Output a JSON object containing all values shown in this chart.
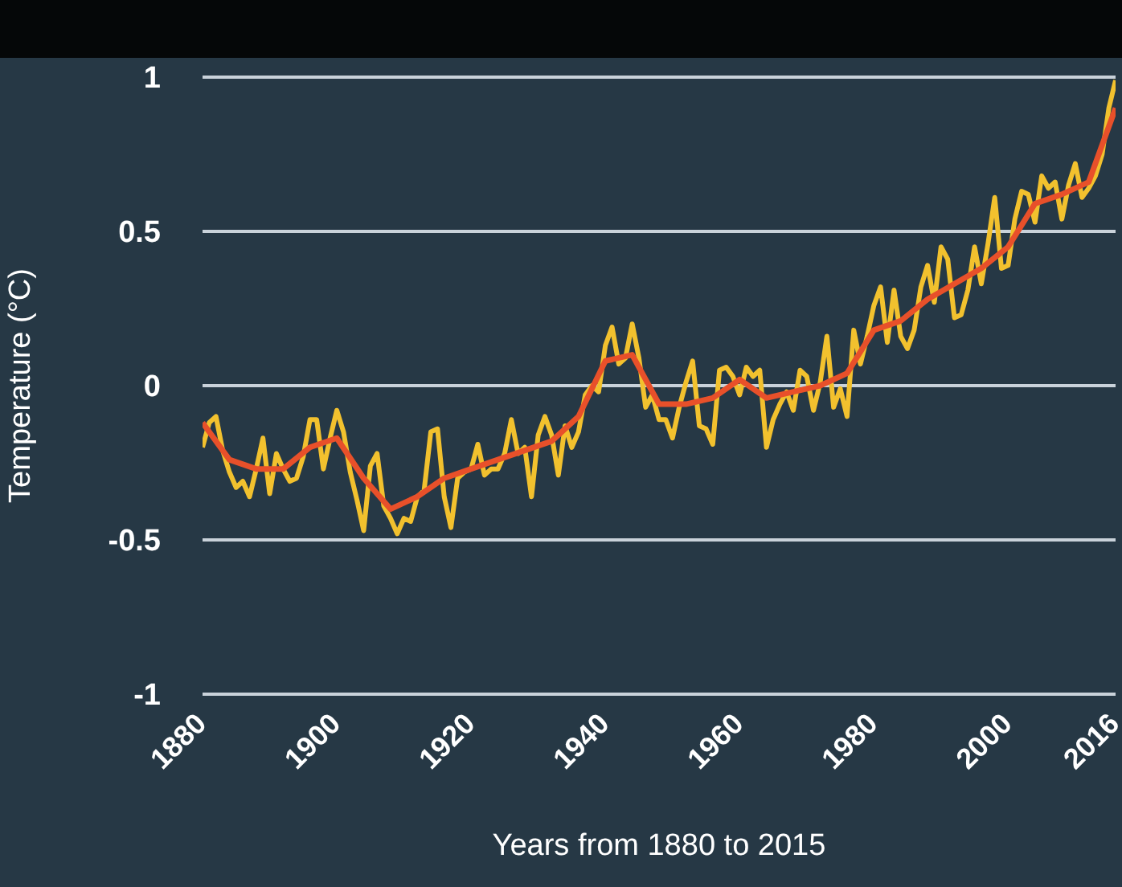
{
  "chart_data": {
    "type": "line",
    "xlabel": "Years from 1880 to 2015",
    "ylabel": "Temperature (°C)",
    "xlim": [
      1880,
      2016
    ],
    "xticks": [
      1880,
      1900,
      1920,
      1940,
      1960,
      1980,
      2000,
      2016
    ],
    "ylim": [
      -1,
      1
    ],
    "yticks": [
      -1,
      -0.5,
      0,
      0.5,
      1
    ],
    "grid": "y",
    "marker": "none",
    "line_style": "solid",
    "series": [
      {
        "color": "#f2c12e",
        "x": [
          1880,
          1881,
          1882,
          1883,
          1884,
          1885,
          1886,
          1887,
          1888,
          1889,
          1890,
          1891,
          1892,
          1893,
          1894,
          1895,
          1896,
          1897,
          1898,
          1899,
          1900,
          1901,
          1902,
          1903,
          1904,
          1905,
          1906,
          1907,
          1908,
          1909,
          1910,
          1911,
          1912,
          1913,
          1914,
          1915,
          1916,
          1917,
          1918,
          1919,
          1920,
          1921,
          1922,
          1923,
          1924,
          1925,
          1926,
          1927,
          1928,
          1929,
          1930,
          1931,
          1932,
          1933,
          1934,
          1935,
          1936,
          1937,
          1938,
          1939,
          1940,
          1941,
          1942,
          1943,
          1944,
          1945,
          1946,
          1947,
          1948,
          1949,
          1950,
          1951,
          1952,
          1953,
          1954,
          1955,
          1956,
          1957,
          1958,
          1959,
          1960,
          1961,
          1962,
          1963,
          1964,
          1965,
          1966,
          1967,
          1968,
          1969,
          1970,
          1971,
          1972,
          1973,
          1974,
          1975,
          1976,
          1977,
          1978,
          1979,
          1980,
          1981,
          1982,
          1983,
          1984,
          1985,
          1986,
          1987,
          1988,
          1989,
          1990,
          1991,
          1992,
          1993,
          1994,
          1995,
          1996,
          1997,
          1998,
          1999,
          2000,
          2001,
          2002,
          2003,
          2004,
          2005,
          2006,
          2007,
          2008,
          2009,
          2010,
          2011,
          2012,
          2013,
          2014,
          2015,
          2016
        ],
        "values": [
          -0.2,
          -0.12,
          -0.1,
          -0.21,
          -0.28,
          -0.33,
          -0.31,
          -0.36,
          -0.27,
          -0.17,
          -0.35,
          -0.22,
          -0.27,
          -0.31,
          -0.3,
          -0.23,
          -0.11,
          -0.11,
          -0.27,
          -0.17,
          -0.08,
          -0.15,
          -0.28,
          -0.37,
          -0.47,
          -0.26,
          -0.22,
          -0.39,
          -0.43,
          -0.48,
          -0.43,
          -0.44,
          -0.36,
          -0.34,
          -0.15,
          -0.14,
          -0.36,
          -0.46,
          -0.3,
          -0.28,
          -0.27,
          -0.19,
          -0.29,
          -0.27,
          -0.27,
          -0.22,
          -0.11,
          -0.22,
          -0.2,
          -0.36,
          -0.16,
          -0.1,
          -0.16,
          -0.29,
          -0.13,
          -0.2,
          -0.15,
          -0.03,
          0,
          -0.02,
          0.13,
          0.19,
          0.07,
          0.09,
          0.2,
          0.09,
          -0.07,
          -0.03,
          -0.11,
          -0.11,
          -0.17,
          -0.07,
          0.01,
          0.08,
          -0.13,
          -0.14,
          -0.19,
          0.05,
          0.06,
          0.03,
          -0.03,
          0.06,
          0.03,
          0.05,
          -0.2,
          -0.11,
          -0.06,
          -0.02,
          -0.08,
          0.05,
          0.03,
          -0.08,
          0.01,
          0.16,
          -0.07,
          -0.01,
          -0.1,
          0.18,
          0.07,
          0.16,
          0.26,
          0.32,
          0.14,
          0.31,
          0.16,
          0.12,
          0.18,
          0.32,
          0.39,
          0.27,
          0.45,
          0.41,
          0.22,
          0.23,
          0.31,
          0.45,
          0.33,
          0.46,
          0.61,
          0.38,
          0.39,
          0.54,
          0.63,
          0.62,
          0.53,
          0.68,
          0.64,
          0.66,
          0.54,
          0.65,
          0.72,
          0.61,
          0.64,
          0.68,
          0.75,
          0.9,
          0.99
        ]
      },
      {
        "color": "#e8502a",
        "x": [
          1880,
          1884,
          1888,
          1892,
          1896,
          1900,
          1904,
          1908,
          1912,
          1916,
          1920,
          1924,
          1928,
          1932,
          1936,
          1940,
          1944,
          1948,
          1952,
          1956,
          1960,
          1964,
          1968,
          1972,
          1976,
          1980,
          1984,
          1988,
          1992,
          1996,
          2000,
          2004,
          2008,
          2012,
          2016
        ],
        "values": [
          -0.12,
          -0.24,
          -0.27,
          -0.27,
          -0.2,
          -0.17,
          -0.3,
          -0.4,
          -0.36,
          -0.3,
          -0.27,
          -0.24,
          -0.21,
          -0.18,
          -0.1,
          0.08,
          0.1,
          -0.06,
          -0.06,
          -0.04,
          0.02,
          -0.04,
          -0.02,
          0,
          0.04,
          0.18,
          0.21,
          0.28,
          0.33,
          0.38,
          0.45,
          0.59,
          0.62,
          0.66,
          0.9
        ]
      }
    ]
  }
}
